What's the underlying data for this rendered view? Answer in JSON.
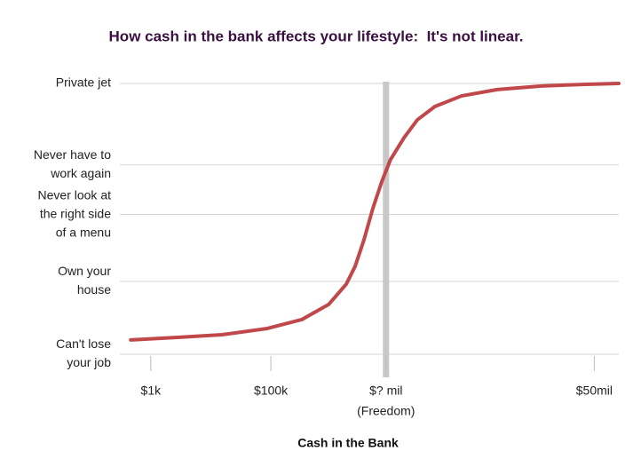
{
  "chart_data": {
    "type": "line",
    "title": "How cash in the bank affects your lifestyle:  It's not linear.",
    "x_label": "Cash in the Bank",
    "x": [
      0.4,
      10.0,
      19.0,
      28.1,
      35.3,
      40.8,
      44.4,
      46.2,
      48.0,
      49.8,
      51.6,
      53.4,
      56.2,
      58.9,
      62.5,
      67.9,
      75.2,
      84.2,
      93.3,
      100
    ],
    "series": [
      {
        "color": "#c0474a",
        "values": [
          4.9,
          5.8,
          6.7,
          8.8,
          11.9,
          17.1,
          24.1,
          30.2,
          39.3,
          50.0,
          59.1,
          66.8,
          74.4,
          80.5,
          85.1,
          88.7,
          90.9,
          92.1,
          92.7,
          93.0
        ]
      }
    ],
    "xlim": [
      0,
      100
    ],
    "xticks": [
      {
        "value": 4.5,
        "label": [
          "$1k"
        ]
      },
      {
        "value": 29,
        "label": [
          "$100k"
        ]
      },
      {
        "value": 52.5,
        "label": [
          "$? mil",
          "(Freedom)"
        ]
      },
      {
        "value": 95,
        "label": [
          "$50mil"
        ]
      }
    ],
    "ylim": [
      -5,
      100
    ],
    "yticks": [
      {
        "value": 0,
        "label": [
          "Can't lose",
          "your job"
        ]
      },
      {
        "value": 25,
        "label": [
          "Own your",
          "house"
        ]
      },
      {
        "value": 48,
        "label": [
          "Never look at",
          "the right side",
          "of a menu"
        ]
      },
      {
        "value": 65,
        "label": [
          "Never have to",
          "work again"
        ]
      },
      {
        "value": 93,
        "label": [
          "Private jet"
        ]
      }
    ],
    "grid": true
  }
}
